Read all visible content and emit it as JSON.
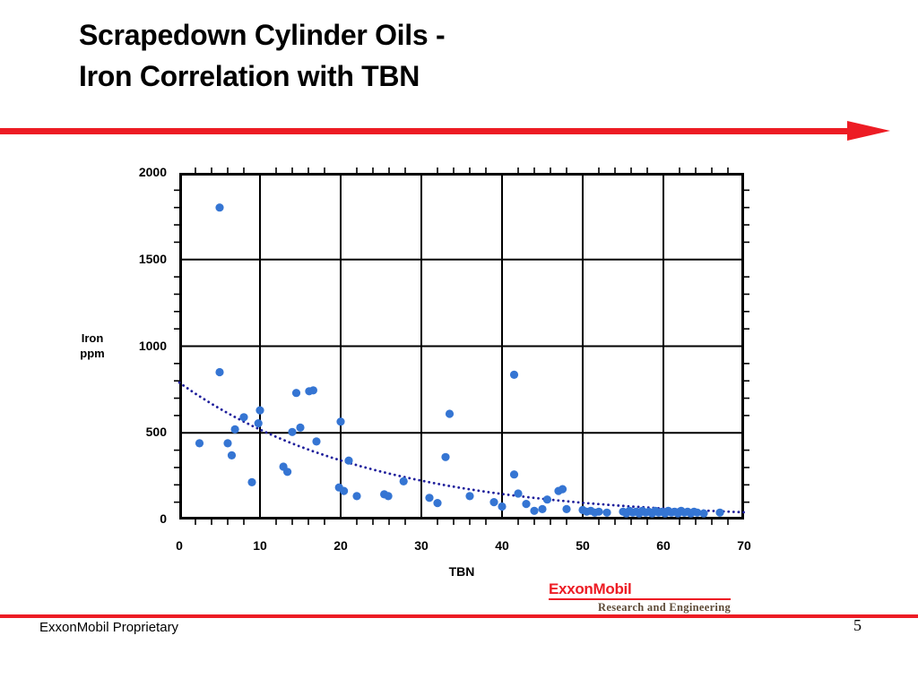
{
  "slide": {
    "title": {
      "line1": "Scrapedown Cylinder Oils -",
      "line2": "Iron Correlation with TBN"
    },
    "footer": {
      "proprietary": "ExxonMobil Proprietary",
      "page_number": "5"
    },
    "logo": {
      "name": "ExxonMobil",
      "tagline": "Research and Engineering"
    }
  },
  "chart_data": {
    "type": "scatter",
    "title": "",
    "xlabel": "TBN",
    "ylabel": "Iron ppm",
    "ylabel_lines": [
      "Iron",
      "ppm"
    ],
    "xlim": [
      0,
      70
    ],
    "ylim": [
      0,
      2000
    ],
    "x_ticks": [
      0,
      10,
      20,
      30,
      40,
      50,
      60,
      70
    ],
    "y_ticks": [
      0,
      500,
      1000,
      1500,
      2000
    ],
    "x_minor_step": 2,
    "y_minor_step": 100,
    "grid": true,
    "legend": false,
    "series": [
      {
        "name": "Iron ppm vs TBN",
        "color": "#3575d3",
        "points": [
          [
            2.5,
            440
          ],
          [
            5,
            1800
          ],
          [
            5,
            850
          ],
          [
            6,
            440
          ],
          [
            6.5,
            370
          ],
          [
            6.9,
            520
          ],
          [
            8,
            590
          ],
          [
            9,
            215
          ],
          [
            9.8,
            555
          ],
          [
            10,
            630
          ],
          [
            12.9,
            305
          ],
          [
            13.4,
            275
          ],
          [
            14,
            505
          ],
          [
            14.5,
            730
          ],
          [
            15,
            530
          ],
          [
            16.1,
            740
          ],
          [
            16.6,
            745
          ],
          [
            17,
            450
          ],
          [
            19.8,
            185
          ],
          [
            20,
            565
          ],
          [
            20.4,
            165
          ],
          [
            21,
            340
          ],
          [
            22,
            135
          ],
          [
            25.4,
            145
          ],
          [
            25.9,
            135
          ],
          [
            27.8,
            220
          ],
          [
            31,
            125
          ],
          [
            32,
            95
          ],
          [
            33,
            360
          ],
          [
            33.5,
            610
          ],
          [
            36,
            135
          ],
          [
            39,
            100
          ],
          [
            40,
            75
          ],
          [
            41.5,
            835
          ],
          [
            41.5,
            260
          ],
          [
            42,
            150
          ],
          [
            43,
            90
          ],
          [
            44,
            50
          ],
          [
            45,
            60
          ],
          [
            45.6,
            115
          ],
          [
            47,
            165
          ],
          [
            47.5,
            175
          ],
          [
            48,
            60
          ],
          [
            50,
            55
          ],
          [
            50.5,
            45
          ],
          [
            51,
            50
          ],
          [
            51.5,
            40
          ],
          [
            52,
            45
          ],
          [
            53,
            40
          ],
          [
            55,
            45
          ],
          [
            55.4,
            35
          ],
          [
            55.8,
            50
          ],
          [
            56.2,
            40
          ],
          [
            56.6,
            45
          ],
          [
            57,
            35
          ],
          [
            57.4,
            50
          ],
          [
            57.8,
            40
          ],
          [
            58.2,
            45
          ],
          [
            58.6,
            35
          ],
          [
            59,
            50
          ],
          [
            59.4,
            40
          ],
          [
            59.8,
            45
          ],
          [
            60.2,
            35
          ],
          [
            60.6,
            50
          ],
          [
            61,
            40
          ],
          [
            61.4,
            45
          ],
          [
            61.8,
            35
          ],
          [
            62.2,
            50
          ],
          [
            62.6,
            40
          ],
          [
            63,
            45
          ],
          [
            63.4,
            35
          ],
          [
            63.8,
            45
          ],
          [
            64.2,
            40
          ],
          [
            65,
            35
          ],
          [
            67,
            40
          ]
        ]
      }
    ],
    "trendline": {
      "style": "dotted",
      "color": "#1f1f9c",
      "model": "exponential",
      "formula": "y = 790 * exp(-0.042 * x)",
      "a": 790,
      "k": 0.042,
      "x_start": 0,
      "x_end": 70
    }
  },
  "colors": {
    "accent_red": "#ed1c24",
    "point_blue": "#3575d3",
    "trend_navy": "#1f1f9c",
    "grid_black": "#000000",
    "tagline_brown": "#5e4b38"
  }
}
